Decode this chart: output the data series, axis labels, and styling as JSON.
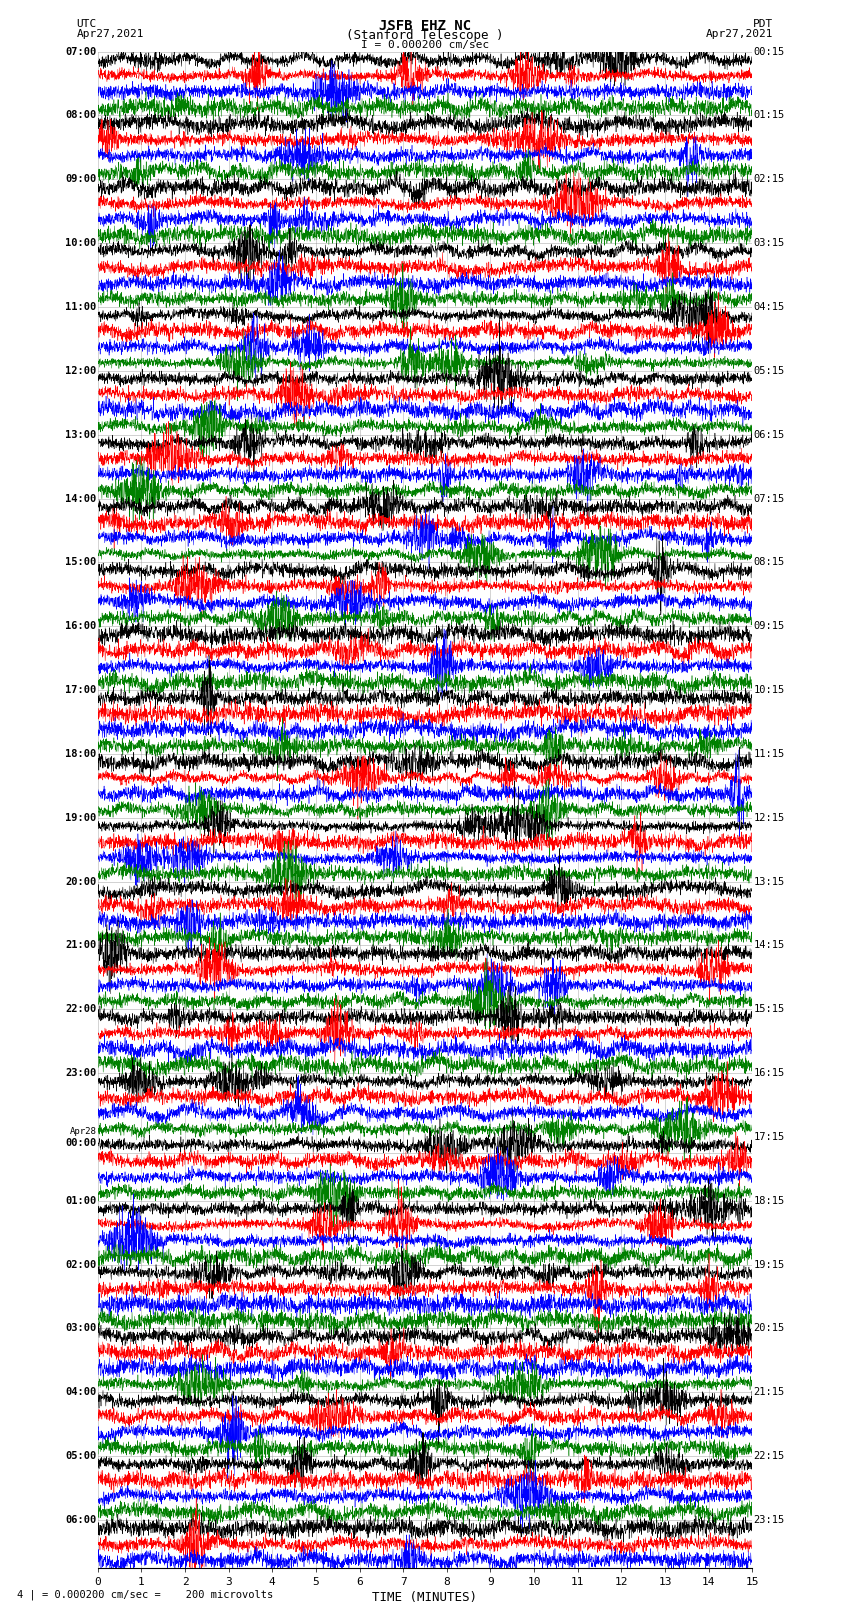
{
  "title_line1": "JSFB EHZ NC",
  "title_line2": "(Stanford Telescope )",
  "scale_text": "I = 0.000200 cm/sec",
  "footer_text": "= 0.000200 cm/sec =    200 microvolts",
  "footer_prefix": "4 |",
  "utc_label": "UTC",
  "utc_date": "Apr27,2021",
  "pdt_label": "PDT",
  "pdt_date": "Apr27,2021",
  "xlabel": "TIME (MINUTES)",
  "left_times": [
    "07:00",
    "",
    "",
    "",
    "08:00",
    "",
    "",
    "",
    "09:00",
    "",
    "",
    "",
    "10:00",
    "",
    "",
    "",
    "11:00",
    "",
    "",
    "",
    "12:00",
    "",
    "",
    "",
    "13:00",
    "",
    "",
    "",
    "14:00",
    "",
    "",
    "",
    "15:00",
    "",
    "",
    "",
    "16:00",
    "",
    "",
    "",
    "17:00",
    "",
    "",
    "",
    "18:00",
    "",
    "",
    "",
    "19:00",
    "",
    "",
    "",
    "20:00",
    "",
    "",
    "",
    "21:00",
    "",
    "",
    "",
    "22:00",
    "",
    "",
    "",
    "23:00",
    "",
    "",
    "",
    "Apr28",
    "00:00",
    "",
    "",
    "01:00",
    "",
    "",
    "",
    "02:00",
    "",
    "",
    "",
    "03:00",
    "",
    "",
    "",
    "04:00",
    "",
    "",
    "",
    "05:00",
    "",
    "",
    "",
    "06:00",
    "",
    ""
  ],
  "right_times": [
    "00:15",
    "",
    "",
    "",
    "01:15",
    "",
    "",
    "",
    "02:15",
    "",
    "",
    "",
    "03:15",
    "",
    "",
    "",
    "04:15",
    "",
    "",
    "",
    "05:15",
    "",
    "",
    "",
    "06:15",
    "",
    "",
    "",
    "07:15",
    "",
    "",
    "",
    "08:15",
    "",
    "",
    "",
    "09:15",
    "",
    "",
    "",
    "10:15",
    "",
    "",
    "",
    "11:15",
    "",
    "",
    "",
    "12:15",
    "",
    "",
    "",
    "13:15",
    "",
    "",
    "",
    "14:15",
    "",
    "",
    "",
    "15:15",
    "",
    "",
    "",
    "16:15",
    "",
    "",
    "",
    "17:15",
    "",
    "",
    "",
    "18:15",
    "",
    "",
    "",
    "19:15",
    "",
    "",
    "",
    "20:15",
    "",
    "",
    "",
    "21:15",
    "",
    "",
    "",
    "22:15",
    "",
    "",
    "",
    "23:15",
    "",
    ""
  ],
  "colors": [
    "black",
    "red",
    "blue",
    "green"
  ],
  "n_rows": 95,
  "x_min": 0,
  "x_max": 15,
  "x_ticks": [
    0,
    1,
    2,
    3,
    4,
    5,
    6,
    7,
    8,
    9,
    10,
    11,
    12,
    13,
    14,
    15
  ],
  "background_color": "white",
  "seed": 42
}
